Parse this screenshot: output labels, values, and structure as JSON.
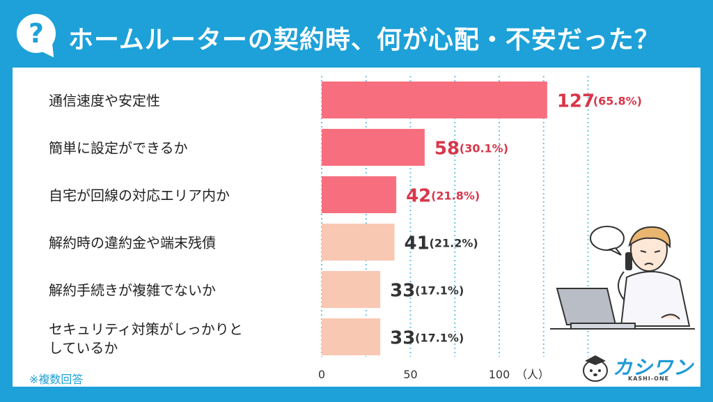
{
  "title": "ホームルーターの契約時、何が心配・不安だった？",
  "question_mark": "?",
  "note": "※複数回答",
  "logo": {
    "text": "カシワン",
    "sub": "KASHI-ONE"
  },
  "chart_data": {
    "type": "bar",
    "orientation": "horizontal",
    "categories": [
      [
        "通信速度や安定性"
      ],
      [
        "簡単に設定ができるか"
      ],
      [
        "自宅が回線の対応エリア内か"
      ],
      [
        "解約時の違約金や端末残債"
      ],
      [
        "解約手続きが複雑でないか"
      ],
      [
        "セキュリティ対策がしっかりと",
        "しているか"
      ]
    ],
    "values": [
      127,
      58,
      42,
      41,
      33,
      33
    ],
    "percent_labels": [
      "(65.8%)",
      "(30.1%)",
      "(21.8%)",
      "(21.2%)",
      "(17.1%)",
      "(17.1%)"
    ],
    "xlim": [
      0,
      150
    ],
    "x_ticks": [
      0,
      50,
      100
    ],
    "x_unit": "（人）",
    "grid": "vertical dotted",
    "colors": {
      "highlight_bar": "#f76f7e",
      "normal_bar": "#f9c8b2",
      "highlight_text": "#d9364a",
      "normal_text": "#333333",
      "grid": "#6cc3ea"
    },
    "highlight_count": 3
  }
}
